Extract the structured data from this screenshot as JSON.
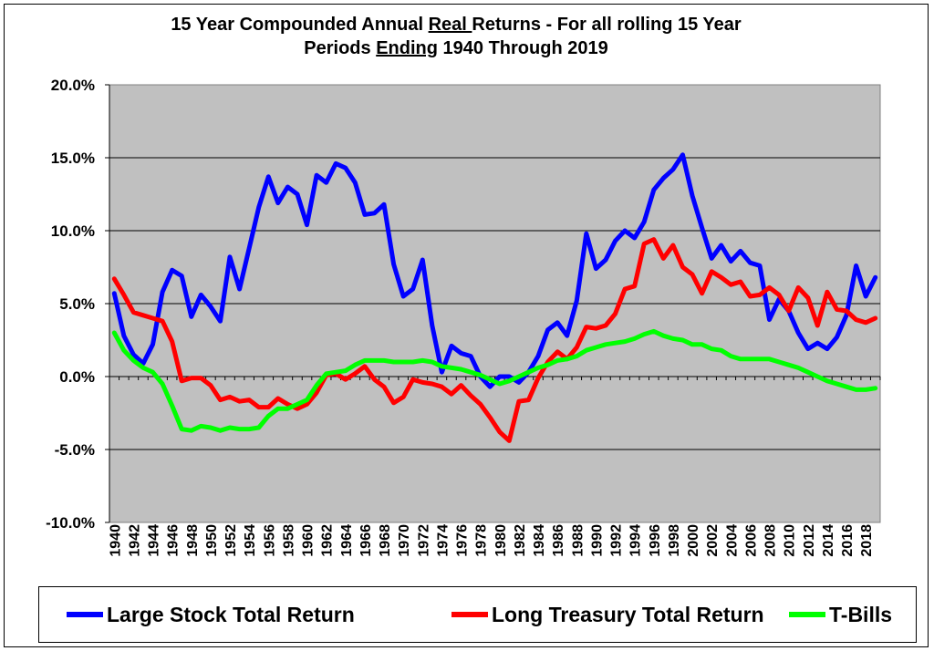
{
  "title": {
    "line1_pre": "15 Year Compounded Annual ",
    "line1_u": "Real ",
    "line1_post": "Returns - For all rolling 15 Year",
    "line2_pre": "Periods ",
    "line2_u": "Ending",
    "line2_post": " 1940 Through 2019"
  },
  "colors": {
    "plot_bg": "#c0c0c0",
    "large_stock": "#0000ff",
    "long_treasury": "#ff0000",
    "tbills": "#00ff00"
  },
  "chart_data": {
    "type": "line",
    "title": "15 Year Compounded Annual Real Returns - For all rolling 15 Year Periods Ending 1940 Through 2019",
    "xlabel": "",
    "ylabel": "",
    "ylim": [
      -0.1,
      0.2
    ],
    "y_ticks": [
      "20.0%",
      "15.0%",
      "10.0%",
      "5.0%",
      "0.0%",
      "-5.0%",
      "-10.0%"
    ],
    "y_tick_values": [
      0.2,
      0.15,
      0.1,
      0.05,
      0.0,
      -0.05,
      -0.1
    ],
    "x_tick_labels": [
      "1940",
      "1942",
      "1944",
      "1946",
      "1948",
      "1950",
      "1952",
      "1954",
      "1956",
      "1958",
      "1960",
      "1962",
      "1964",
      "1966",
      "1968",
      "1970",
      "1972",
      "1974",
      "1976",
      "1978",
      "1980",
      "1982",
      "1984",
      "1986",
      "1988",
      "1990",
      "1992",
      "1994",
      "1996",
      "1998",
      "2000",
      "2002",
      "2004",
      "2006",
      "2008",
      "2010",
      "2012",
      "2014",
      "2016",
      "2018"
    ],
    "grid": "horizontal",
    "legend_position": "bottom",
    "x": [
      1940,
      1941,
      1942,
      1943,
      1944,
      1945,
      1946,
      1947,
      1948,
      1949,
      1950,
      1951,
      1952,
      1953,
      1954,
      1955,
      1956,
      1957,
      1958,
      1959,
      1960,
      1961,
      1962,
      1963,
      1964,
      1965,
      1966,
      1967,
      1968,
      1969,
      1970,
      1971,
      1972,
      1973,
      1974,
      1975,
      1976,
      1977,
      1978,
      1979,
      1980,
      1981,
      1982,
      1983,
      1984,
      1985,
      1986,
      1987,
      1988,
      1989,
      1990,
      1991,
      1992,
      1993,
      1994,
      1995,
      1996,
      1997,
      1998,
      1999,
      2000,
      2001,
      2002,
      2003,
      2004,
      2005,
      2006,
      2007,
      2008,
      2009,
      2010,
      2011,
      2012,
      2013,
      2014,
      2015,
      2016,
      2017,
      2018,
      2019
    ],
    "series": [
      {
        "name": "Large Stock Total Return",
        "color": "#0000ff",
        "values": [
          0.057,
          0.028,
          0.015,
          0.009,
          0.022,
          0.058,
          0.073,
          0.069,
          0.041,
          0.056,
          0.048,
          0.038,
          0.082,
          0.06,
          0.088,
          0.116,
          0.137,
          0.119,
          0.13,
          0.125,
          0.104,
          0.138,
          0.133,
          0.146,
          0.143,
          0.133,
          0.111,
          0.112,
          0.118,
          0.077,
          0.055,
          0.06,
          0.08,
          0.035,
          0.003,
          0.021,
          0.016,
          0.014,
          0.0,
          -0.007,
          0.0,
          0.0,
          -0.004,
          0.003,
          0.014,
          0.032,
          0.037,
          0.028,
          0.052,
          0.098,
          0.074,
          0.08,
          0.093,
          0.1,
          0.095,
          0.106,
          0.128,
          0.136,
          0.142,
          0.152,
          0.124,
          0.102,
          0.081,
          0.09,
          0.079,
          0.086,
          0.078,
          0.076,
          0.039,
          0.053,
          0.045,
          0.03,
          0.019,
          0.023,
          0.019,
          0.027,
          0.042,
          0.076,
          0.055,
          0.068
        ]
      },
      {
        "name": "Long Treasury Total Return",
        "color": "#ff0000",
        "values": [
          0.067,
          0.056,
          0.044,
          0.042,
          0.04,
          0.038,
          0.024,
          -0.003,
          -0.001,
          -0.001,
          -0.006,
          -0.016,
          -0.014,
          -0.017,
          -0.016,
          -0.021,
          -0.021,
          -0.015,
          -0.019,
          -0.022,
          -0.019,
          -0.011,
          0.001,
          0.002,
          -0.002,
          0.002,
          0.007,
          -0.002,
          -0.007,
          -0.018,
          -0.014,
          -0.002,
          -0.004,
          -0.005,
          -0.007,
          -0.012,
          -0.006,
          -0.013,
          -0.019,
          -0.028,
          -0.038,
          -0.044,
          -0.017,
          -0.016,
          -0.001,
          0.01,
          0.017,
          0.012,
          0.02,
          0.034,
          0.033,
          0.035,
          0.043,
          0.06,
          0.062,
          0.091,
          0.094,
          0.081,
          0.09,
          0.075,
          0.07,
          0.057,
          0.072,
          0.068,
          0.063,
          0.065,
          0.055,
          0.056,
          0.061,
          0.056,
          0.045,
          0.061,
          0.054,
          0.035,
          0.058,
          0.046,
          0.045,
          0.039,
          0.037,
          0.04
        ]
      },
      {
        "name": "T-Bills",
        "color": "#00ff00",
        "values": [
          0.03,
          0.018,
          0.011,
          0.006,
          0.003,
          -0.005,
          -0.02,
          -0.036,
          -0.037,
          -0.034,
          -0.035,
          -0.037,
          -0.035,
          -0.036,
          -0.036,
          -0.035,
          -0.027,
          -0.022,
          -0.022,
          -0.019,
          -0.016,
          -0.006,
          0.002,
          0.003,
          0.004,
          0.008,
          0.011,
          0.011,
          0.011,
          0.01,
          0.01,
          0.01,
          0.011,
          0.01,
          0.007,
          0.006,
          0.005,
          0.003,
          0.001,
          -0.002,
          -0.005,
          -0.003,
          0.0,
          0.003,
          0.006,
          0.008,
          0.011,
          0.012,
          0.014,
          0.018,
          0.02,
          0.022,
          0.023,
          0.024,
          0.026,
          0.029,
          0.031,
          0.028,
          0.026,
          0.025,
          0.022,
          0.022,
          0.019,
          0.018,
          0.014,
          0.012,
          0.012,
          0.012,
          0.012,
          0.01,
          0.008,
          0.006,
          0.003,
          0.0,
          -0.003,
          -0.005,
          -0.007,
          -0.009,
          -0.009,
          -0.008
        ]
      }
    ]
  }
}
